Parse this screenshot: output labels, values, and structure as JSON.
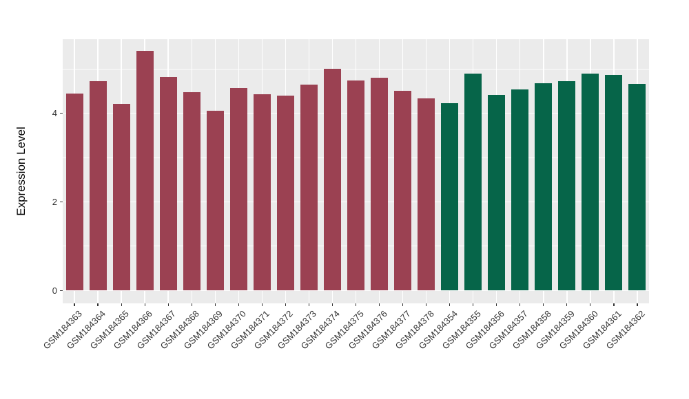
{
  "chart_data": {
    "type": "bar",
    "title": "",
    "xlabel": "",
    "ylabel": "Expression Level",
    "ylim": [
      -0.29,
      5.67
    ],
    "yticks": [
      0,
      2,
      4
    ],
    "ytick_labels": [
      "0",
      "2",
      "4"
    ],
    "yticks_minor": [
      1,
      3,
      5
    ],
    "grid": true,
    "legend": false,
    "panel_background": "#EBEBEB",
    "grid_major_color": "#FFFFFF",
    "grid_minor_color": "#FFFFFF",
    "tick_color": "#333333",
    "series": [
      {
        "color": "#9B4152",
        "categories": [
          "GSM184363",
          "GSM184364",
          "GSM184365",
          "GSM184366",
          "GSM184367",
          "GSM184368",
          "GSM184369",
          "GSM184370",
          "GSM184371",
          "GSM184372",
          "GSM184373",
          "GSM184374",
          "GSM184375",
          "GSM184376",
          "GSM184377",
          "GSM184378"
        ],
        "values": [
          4.45,
          4.73,
          4.21,
          5.4,
          4.81,
          4.47,
          4.06,
          4.57,
          4.43,
          4.4,
          4.65,
          5.0,
          4.74,
          4.8,
          4.51,
          4.33
        ]
      },
      {
        "color": "#066549",
        "categories": [
          "GSM184354",
          "GSM184355",
          "GSM184356",
          "GSM184357",
          "GSM184358",
          "GSM184359",
          "GSM184360",
          "GSM184361",
          "GSM184362"
        ],
        "values": [
          4.23,
          4.9,
          4.42,
          4.54,
          4.68,
          4.72,
          4.89,
          4.86,
          4.66
        ]
      }
    ]
  }
}
